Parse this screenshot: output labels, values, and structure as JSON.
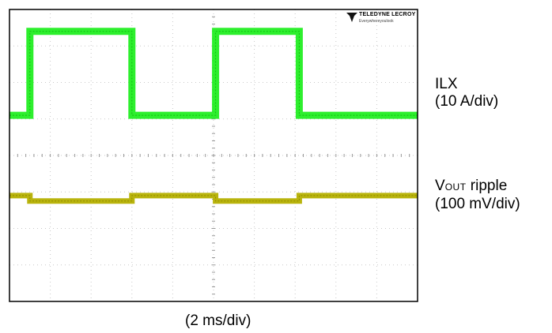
{
  "brand": {
    "name": "TELEDYNE LECROY",
    "tagline": "Everywhereyoulook"
  },
  "labels": {
    "ilx_name": "ILX",
    "ilx_scale": "(10 A/div)",
    "vout_main": "V",
    "vout_sub": "OUT",
    "vout_rest": " ripple",
    "vout_scale": "(100 mV/div)",
    "time_scale": "(2 ms/div)"
  },
  "colors": {
    "ilx": "#22ee22",
    "vout": "#b5b000",
    "grid": "#c8c8c8",
    "frame": "#000000"
  },
  "chart_data": {
    "type": "line",
    "grid": {
      "divisions_x": 10,
      "divisions_y": 8,
      "on": true
    },
    "xlabel": "(2 ms/div)",
    "xlim": [
      0,
      20
    ],
    "series": [
      {
        "name": "ILX",
        "scale": "10 A/div",
        "x": [
          0,
          1.0,
          1.0,
          6.0,
          6.0,
          10.1,
          10.1,
          14.2,
          14.2,
          20
        ],
        "values": [
          -1.0,
          -1.0,
          1.3,
          1.3,
          -1.0,
          -1.0,
          1.3,
          1.3,
          -1.0,
          -1.0
        ]
      },
      {
        "name": "VOUT ripple",
        "scale": "100 mV/div",
        "x": [
          0,
          1.0,
          1.0,
          6.0,
          6.0,
          10.1,
          10.1,
          14.2,
          14.2,
          20
        ],
        "values": [
          0.1,
          0.1,
          -0.05,
          -0.05,
          0.1,
          0.1,
          -0.05,
          -0.05,
          0.1,
          0.1
        ]
      }
    ]
  }
}
